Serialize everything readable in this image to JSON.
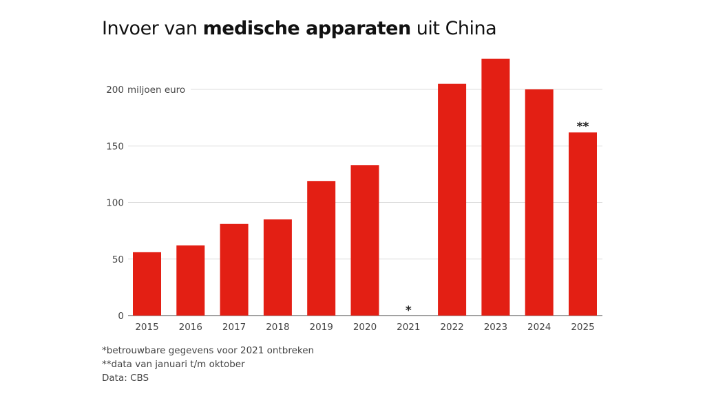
{
  "title": {
    "part1": "Invoer van ",
    "bold": "medische apparaten",
    "part2": " uit China"
  },
  "chart_data": {
    "type": "bar",
    "title": "Invoer van medische apparaten uit China",
    "ylabel": "miljoen euro",
    "categories": [
      "2015",
      "2016",
      "2017",
      "2018",
      "2019",
      "2020",
      "2021",
      "2022",
      "2023",
      "2024",
      "2025"
    ],
    "values": [
      56,
      62,
      81,
      85,
      119,
      133,
      null,
      205,
      227,
      200,
      162
    ],
    "annotations": {
      "2021": "*",
      "2025": "**"
    },
    "yticks": [
      0,
      50,
      100,
      150,
      200
    ],
    "ylim": [
      0,
      230
    ],
    "grid": true,
    "bar_color": "#e31f14"
  },
  "notes": [
    "*betrouwbare gegevens voor 2021 ontbreken",
    "**data van januari t/m oktober",
    "Data: CBS"
  ]
}
